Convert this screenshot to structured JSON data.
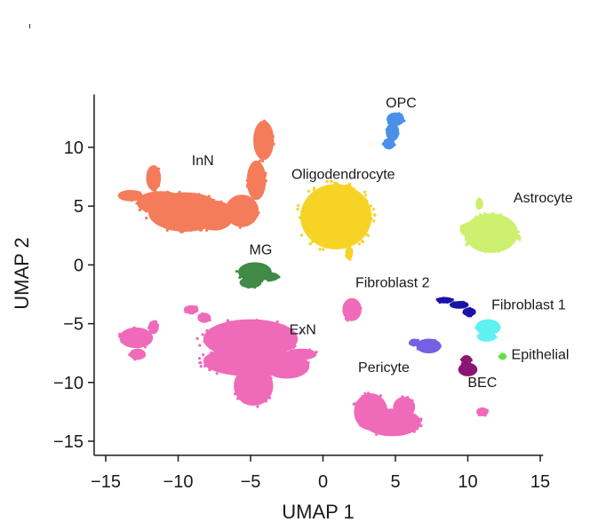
{
  "chart_data": {
    "type": "scatter",
    "xlabel": "UMAP 1",
    "ylabel": "UMAP 2",
    "xlim": [
      -15.8,
      15.2
    ],
    "ylim": [
      -16.2,
      14.5
    ],
    "xticks": [
      {
        "value": -15,
        "label": "−15"
      },
      {
        "value": -10,
        "label": "−10"
      },
      {
        "value": -5,
        "label": "−5"
      },
      {
        "value": 0,
        "label": "0"
      },
      {
        "value": 5,
        "label": "5"
      },
      {
        "value": 10,
        "label": "10"
      },
      {
        "value": 15,
        "label": "15"
      }
    ],
    "yticks": [
      {
        "value": 10,
        "label": "10"
      },
      {
        "value": 5,
        "label": "5"
      },
      {
        "value": 0,
        "label": "0"
      },
      {
        "value": -5,
        "label": "−5"
      },
      {
        "value": -10,
        "label": "−10"
      },
      {
        "value": -15,
        "label": "−15"
      }
    ],
    "grid": false,
    "clusters": [
      {
        "name": "InN",
        "color": "#f47c5a",
        "label_at": [
          -8.3,
          8.5
        ],
        "blobs": [
          {
            "cx": -11.7,
            "cy": 7.4,
            "rx": 0.45,
            "ry": 1.0
          },
          {
            "cx": -11.2,
            "cy": 5.3,
            "rx": 1.6,
            "ry": 0.9
          },
          {
            "cx": -9.5,
            "cy": 4.5,
            "rx": 2.5,
            "ry": 1.6
          },
          {
            "cx": -13.3,
            "cy": 5.9,
            "rx": 0.8,
            "ry": 0.4
          },
          {
            "cx": -7.5,
            "cy": 4.2,
            "rx": 1.3,
            "ry": 1.2
          },
          {
            "cx": -5.6,
            "cy": 4.6,
            "rx": 1.1,
            "ry": 1.3
          },
          {
            "cx": -4.6,
            "cy": 7.2,
            "rx": 0.6,
            "ry": 1.6
          },
          {
            "cx": -4.1,
            "cy": 10.6,
            "rx": 0.65,
            "ry": 1.6
          }
        ]
      },
      {
        "name": "OPC",
        "color": "#4b90e8",
        "label_at": [
          5.4,
          13.4
        ],
        "blobs": [
          {
            "cx": 5.0,
            "cy": 12.4,
            "rx": 0.55,
            "ry": 0.5
          },
          {
            "cx": 4.8,
            "cy": 11.3,
            "rx": 0.4,
            "ry": 0.7
          },
          {
            "cx": 4.55,
            "cy": 10.3,
            "rx": 0.35,
            "ry": 0.4
          }
        ]
      },
      {
        "name": "Oligodendrocyte",
        "color": "#f7d325",
        "label_at": [
          1.4,
          7.3
        ],
        "blobs": [
          {
            "cx": 0.9,
            "cy": 4.1,
            "rx": 2.4,
            "ry": 2.7
          },
          {
            "cx": 1.7,
            "cy": 6.4,
            "rx": 0.3,
            "ry": 0.4
          },
          {
            "cx": 1.8,
            "cy": 1.0,
            "rx": 0.2,
            "ry": 0.5
          }
        ]
      },
      {
        "name": "Astrocyte",
        "color": "#cdf06e",
        "label_at": [
          15.2,
          5.3
        ],
        "blobs": [
          {
            "cx": 11.6,
            "cy": 2.7,
            "rx": 1.8,
            "ry": 1.6
          },
          {
            "cx": 10.3,
            "cy": 3.0,
            "rx": 0.8,
            "ry": 0.6
          },
          {
            "cx": 10.8,
            "cy": 5.2,
            "rx": 0.2,
            "ry": 0.4
          }
        ]
      },
      {
        "name": "MG",
        "color": "#3f8b47",
        "label_at": [
          -4.3,
          0.9
        ],
        "blobs": [
          {
            "cx": -4.7,
            "cy": -0.6,
            "rx": 1.1,
            "ry": 0.75
          },
          {
            "cx": -5.0,
            "cy": -1.5,
            "rx": 0.7,
            "ry": 0.4
          },
          {
            "cx": -3.6,
            "cy": -1.0,
            "rx": 0.5,
            "ry": 0.3
          }
        ]
      },
      {
        "name": "ExN",
        "color": "#f06aba",
        "label_at": [
          -1.4,
          -5.9
        ],
        "blobs": [
          {
            "cx": -5.0,
            "cy": -6.3,
            "rx": 3.2,
            "ry": 1.6
          },
          {
            "cx": -5.0,
            "cy": -8.2,
            "rx": 3.2,
            "ry": 1.2
          },
          {
            "cx": -4.8,
            "cy": -10.3,
            "rx": 1.3,
            "ry": 1.6
          },
          {
            "cx": -2.5,
            "cy": -8.6,
            "rx": 1.5,
            "ry": 1.0
          },
          {
            "cx": -1.5,
            "cy": -7.6,
            "rx": 1.0,
            "ry": 0.4
          },
          {
            "cx": -12.9,
            "cy": -6.2,
            "rx": 1.1,
            "ry": 0.8
          },
          {
            "cx": -11.7,
            "cy": -5.3,
            "rx": 0.3,
            "ry": 0.5
          },
          {
            "cx": -12.8,
            "cy": -7.6,
            "rx": 0.5,
            "ry": 0.4
          },
          {
            "cx": -9.1,
            "cy": -3.8,
            "rx": 0.45,
            "ry": 0.3
          },
          {
            "cx": -8.2,
            "cy": -4.5,
            "rx": 0.4,
            "ry": 0.35
          },
          {
            "cx": 2.0,
            "cy": -3.8,
            "rx": 0.6,
            "ry": 0.9
          },
          {
            "cx": 3.3,
            "cy": -12.5,
            "rx": 1.1,
            "ry": 1.5
          },
          {
            "cx": 4.8,
            "cy": -13.4,
            "rx": 1.9,
            "ry": 1.1
          },
          {
            "cx": 5.6,
            "cy": -12.1,
            "rx": 0.7,
            "ry": 0.8
          },
          {
            "cx": 11.0,
            "cy": -12.5,
            "rx": 0.35,
            "ry": 0.3
          }
        ]
      },
      {
        "name": "Fibroblast 2",
        "color": "#1a13a8",
        "label_at": [
          4.8,
          -1.9
        ],
        "blobs": [
          {
            "cx": 8.4,
            "cy": -3.0,
            "rx": 0.5,
            "ry": 0.2
          },
          {
            "cx": 9.4,
            "cy": -3.4,
            "rx": 0.6,
            "ry": 0.25
          },
          {
            "cx": 10.1,
            "cy": -4.0,
            "rx": 0.4,
            "ry": 0.3
          }
        ]
      },
      {
        "name": "Fibroblast 1",
        "color": "#5ef1f2",
        "label_at": [
          14.2,
          -3.8
        ],
        "blobs": [
          {
            "cx": 11.4,
            "cy": -5.3,
            "rx": 0.8,
            "ry": 0.6
          },
          {
            "cx": 11.3,
            "cy": -6.1,
            "rx": 0.6,
            "ry": 0.35
          }
        ]
      },
      {
        "name": "Pericyte",
        "color": "#7460e2",
        "label_at": [
          4.2,
          -9.1
        ],
        "blobs": [
          {
            "cx": 7.3,
            "cy": -6.9,
            "rx": 0.8,
            "ry": 0.55
          },
          {
            "cx": 6.3,
            "cy": -6.6,
            "rx": 0.3,
            "ry": 0.25
          }
        ]
      },
      {
        "name": "BEC",
        "color": "#8c1575",
        "label_at": [
          11.0,
          -10.4
        ],
        "blobs": [
          {
            "cx": 10.0,
            "cy": -8.9,
            "rx": 0.6,
            "ry": 0.5
          },
          {
            "cx": 9.9,
            "cy": -8.1,
            "rx": 0.3,
            "ry": 0.35
          }
        ]
      },
      {
        "name": "Epithelial",
        "color": "#5de43d",
        "label_at": [
          15.0,
          -8.0
        ],
        "blobs": [
          {
            "cx": 12.4,
            "cy": -7.8,
            "rx": 0.2,
            "ry": 0.2
          }
        ]
      }
    ]
  }
}
